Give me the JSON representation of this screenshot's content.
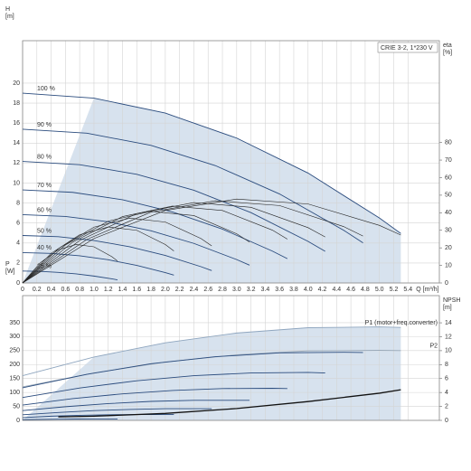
{
  "chart_data": [
    {
      "type": "line",
      "title": "CRIE 3-2, 1*230 V",
      "x_label": "Q [m³/h]",
      "y_label": [
        "H",
        "[m]"
      ],
      "y2_label": [
        "eta",
        "[%]"
      ],
      "xlim": [
        0,
        5.84
      ],
      "xticks": [
        0,
        0.2,
        0.4,
        0.6,
        0.8,
        {
          "value": 1,
          "label": "1.0"
        },
        1.2,
        1.4,
        1.6,
        1.8,
        {
          "value": 2,
          "label": "2.0"
        },
        2.2,
        2.4,
        2.6,
        2.8,
        {
          "value": 3,
          "label": "3.0"
        },
        3.2,
        3.4,
        3.6,
        3.8,
        {
          "value": 4,
          "label": "4.0"
        },
        4.2,
        4.4,
        4.6,
        4.8,
        {
          "value": 5,
          "label": "5.0"
        },
        5.2,
        5.4
      ],
      "ylim": [
        0,
        24.25
      ],
      "yticks": [
        0,
        2,
        4,
        6,
        8,
        10,
        12,
        14,
        16,
        18,
        20
      ],
      "y2lim": [
        0,
        138
      ],
      "y2ticks": [
        0,
        10,
        20,
        30,
        40,
        50,
        60,
        70,
        80
      ],
      "grid": true,
      "series": [
        {
          "name": "100 %",
          "color": "#2b4c7e",
          "x": [
            0,
            1,
            2,
            3,
            4,
            5,
            5.3
          ],
          "values": [
            19,
            18.5,
            17,
            14.5,
            11,
            6.5,
            4.95
          ]
        },
        {
          "name": "90 %",
          "color": "#2b4c7e",
          "x": [
            0,
            0.9,
            1.8,
            2.7,
            3.6,
            4.5,
            4.77
          ],
          "values": [
            15.39,
            14.99,
            13.77,
            11.75,
            8.91,
            5.27,
            4.01
          ]
        },
        {
          "name": "80 %",
          "color": "#2b4c7e",
          "x": [
            0,
            0.8,
            1.6,
            2.4,
            3.2,
            4,
            4.24
          ],
          "values": [
            12.16,
            11.84,
            10.88,
            9.28,
            7.04,
            4.16,
            3.17
          ]
        },
        {
          "name": "70 %",
          "color": "#2b4c7e",
          "x": [
            0,
            0.7,
            1.4,
            2.1,
            2.8,
            3.5,
            3.71
          ],
          "values": [
            9.31,
            9.07,
            8.33,
            7.11,
            5.39,
            3.19,
            2.43
          ]
        },
        {
          "name": "60 %",
          "color": "#2b4c7e",
          "x": [
            0,
            0.6,
            1.2,
            1.8,
            2.4,
            3,
            3.18
          ],
          "values": [
            6.84,
            6.66,
            6.12,
            5.22,
            3.96,
            2.34,
            1.78
          ]
        },
        {
          "name": "50 %",
          "color": "#2b4c7e",
          "x": [
            0,
            0.5,
            1,
            1.5,
            2,
            2.5,
            2.65
          ],
          "values": [
            4.75,
            4.63,
            4.25,
            3.63,
            2.75,
            1.63,
            1.24
          ]
        },
        {
          "name": "40 %",
          "color": "#2b4c7e",
          "x": [
            0,
            0.4,
            0.8,
            1.2,
            1.6,
            2,
            2.12
          ],
          "values": [
            3.04,
            2.96,
            2.72,
            2.32,
            1.76,
            1.04,
            0.79
          ]
        },
        {
          "name": "25 %",
          "color": "#2b4c7e",
          "x": [
            0,
            0.25,
            0.5,
            0.75,
            1,
            1.25,
            1.33
          ],
          "values": [
            1.19,
            1.16,
            1.06,
            0.91,
            0.69,
            0.41,
            0.31
          ]
        },
        {
          "axis": "y2",
          "color": "#222222",
          "x": [
            0,
            1,
            2,
            3,
            4,
            5,
            5.3
          ],
          "values": [
            0,
            25.3,
            41.3,
            47.8,
            45,
            32.8,
            27.3
          ]
        },
        {
          "axis": "y2",
          "color": "#222222",
          "x": [
            0,
            0.9,
            1.8,
            2.7,
            3.6,
            4.5,
            4.77
          ],
          "values": [
            0,
            24.8,
            40.4,
            46.8,
            44.1,
            32.1,
            26.7
          ]
        },
        {
          "axis": "y2",
          "color": "#222222",
          "x": [
            0,
            0.8,
            1.6,
            2.4,
            3.2,
            4,
            4.24
          ],
          "values": [
            0,
            24.2,
            39.5,
            45.8,
            43.1,
            31.5,
            26.2
          ]
        },
        {
          "axis": "y2",
          "color": "#222222",
          "x": [
            0,
            0.7,
            1.4,
            2.1,
            2.8,
            3.5,
            3.71
          ],
          "values": [
            0,
            23.2,
            37.8,
            43.8,
            41.3,
            30.1,
            25
          ]
        },
        {
          "axis": "y2",
          "color": "#222222",
          "x": [
            0,
            0.6,
            1.2,
            1.8,
            2.4,
            3,
            3.18
          ],
          "values": [
            0,
            21.6,
            35.2,
            40.8,
            38.4,
            28,
            23.3
          ]
        },
        {
          "axis": "y2",
          "color": "#222222",
          "x": [
            0,
            0.5,
            1,
            1.5,
            2,
            2.5,
            2.65
          ],
          "values": [
            0,
            19.5,
            31.8,
            36.9,
            34.7,
            25.3,
            21.1
          ]
        },
        {
          "axis": "y2",
          "color": "#222222",
          "x": [
            0,
            0.4,
            0.8,
            1.2,
            1.6,
            2,
            2.12
          ],
          "values": [
            0,
            16.9,
            27.5,
            31.9,
            30,
            21.9,
            18.2
          ]
        },
        {
          "axis": "y2",
          "color": "#222222",
          "x": [
            0,
            0.25,
            0.5,
            0.75,
            1,
            1.25,
            1.33
          ],
          "values": [
            0,
            11.6,
            18.9,
            21.9,
            20.6,
            15,
            12.5
          ]
        }
      ]
    },
    {
      "type": "line",
      "y_label": [
        "P",
        "[W]"
      ],
      "y2_label": [
        "NPSH",
        "[m]"
      ],
      "xlim": [
        0,
        5.84
      ],
      "ylim": [
        0,
        447
      ],
      "yticks": [
        0,
        50,
        100,
        150,
        200,
        250,
        300,
        350
      ],
      "y2lim": [
        0,
        17.9
      ],
      "y2ticks": [
        0,
        2,
        4,
        6,
        8,
        10,
        12,
        14
      ],
      "grid": true,
      "series": [
        {
          "name": "P1 (motor+freq.converter)",
          "color": "#8fa6bf",
          "x": [
            0,
            1,
            2,
            3,
            4,
            5,
            5.3
          ],
          "values": [
            160,
            227,
            278,
            313,
            332,
            335,
            333
          ]
        },
        {
          "name": "P2",
          "color": "#9aa9b8",
          "x": [
            0,
            1,
            2,
            3,
            4,
            5,
            5.3
          ],
          "values": [
            120,
            170,
            209,
            235,
            249,
            251,
            250
          ]
        },
        {
          "color": "#2b4c7e",
          "x": [
            0,
            0.9,
            1.8,
            2.7,
            3.6,
            4.5,
            4.77
          ],
          "values": [
            117,
            165,
            203,
            228,
            242,
            244,
            243
          ]
        },
        {
          "color": "#2b4c7e",
          "x": [
            0,
            0.8,
            1.6,
            2.4,
            3.2,
            4,
            4.24
          ],
          "values": [
            82,
            116,
            142,
            160,
            170,
            172,
            170
          ]
        },
        {
          "color": "#2b4c7e",
          "x": [
            0,
            0.7,
            1.4,
            2.1,
            2.8,
            3.5,
            3.71
          ],
          "values": [
            55,
            78,
            95,
            107,
            114,
            115,
            114
          ]
        },
        {
          "color": "#2b4c7e",
          "x": [
            0,
            0.6,
            1.2,
            1.8,
            2.4,
            3,
            3.18
          ],
          "values": [
            35,
            49,
            60,
            68,
            72,
            72,
            72
          ]
        },
        {
          "color": "#2b4c7e",
          "x": [
            0,
            0.5,
            1,
            1.5,
            2,
            2.5,
            2.65
          ],
          "values": [
            20,
            28,
            35,
            39,
            42,
            42,
            42
          ]
        },
        {
          "color": "#2b4c7e",
          "x": [
            0,
            0.4,
            0.8,
            1.2,
            1.6,
            2,
            2.12
          ],
          "values": [
            10,
            15,
            18,
            20,
            21,
            21,
            21
          ]
        },
        {
          "color": "#2b4c7e",
          "x": [
            0,
            0.25,
            0.5,
            0.75,
            1,
            1.25,
            1.33
          ],
          "values": [
            2.5,
            3.5,
            4.3,
            4.9,
            5.2,
            5.2,
            5.2
          ]
        },
        {
          "axis": "y2",
          "color": "#111111",
          "x": [
            0.5,
            1,
            2,
            3,
            4,
            5,
            5.3
          ],
          "values": [
            0.5,
            0.6,
            1,
            1.7,
            2.7,
            3.9,
            4.4
          ]
        }
      ]
    }
  ]
}
